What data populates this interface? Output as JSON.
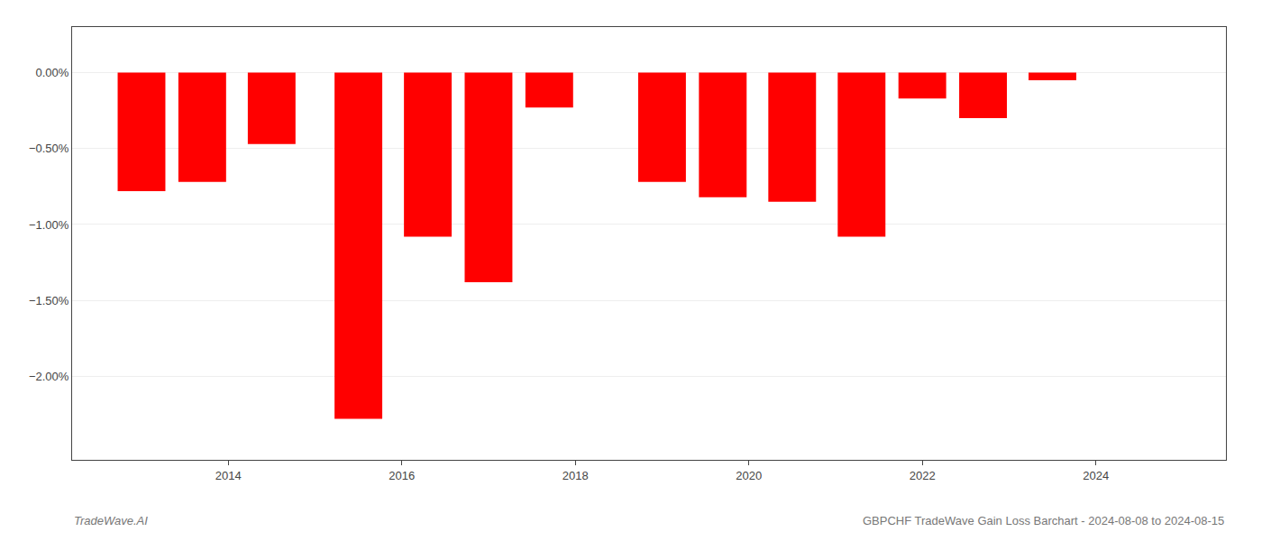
{
  "chart_data": {
    "type": "bar",
    "x": [
      2013,
      2013.7,
      2014.5,
      2015.5,
      2016.3,
      2017.0,
      2017.7,
      2019.0,
      2019.7,
      2020.5,
      2021.3,
      2022.0,
      2022.7,
      2023.5
    ],
    "values": [
      -0.0078,
      -0.0072,
      -0.0047,
      -0.0228,
      -0.0108,
      -0.0138,
      -0.0023,
      -0.0072,
      -0.0082,
      -0.0085,
      -0.0108,
      -0.0017,
      -0.003,
      -0.0005
    ],
    "color": "#ff0000",
    "xlim": [
      2012.2,
      2025.5
    ],
    "ylim": [
      -0.0255,
      0.003
    ],
    "xticks": [
      2014,
      2016,
      2018,
      2020,
      2022,
      2024
    ],
    "yticks": [
      {
        "value": 0.0,
        "label": "0.00%"
      },
      {
        "value": -0.005,
        "label": "−0.50%"
      },
      {
        "value": -0.01,
        "label": "−1.00%"
      },
      {
        "value": -0.015,
        "label": "−1.50%"
      },
      {
        "value": -0.02,
        "label": "−2.00%"
      }
    ],
    "grid": true,
    "annotations": [
      "TradeWave.AI",
      "GBPCHF TradeWave Gain Loss Barchart - 2024-08-08 to 2024-08-15"
    ]
  }
}
